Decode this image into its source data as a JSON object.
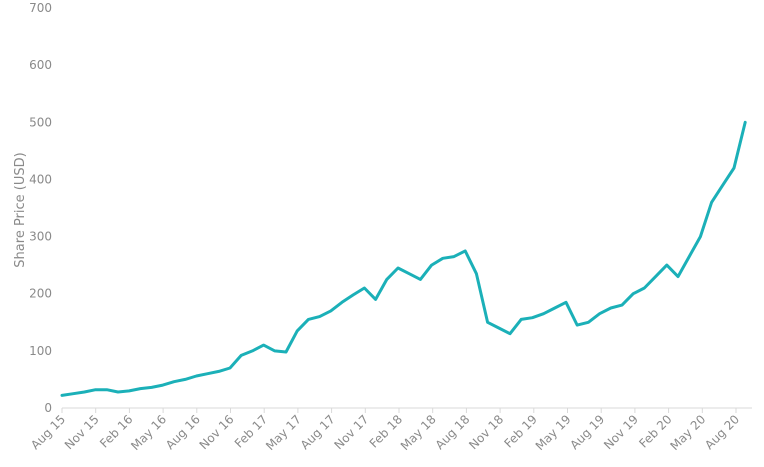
{
  "chart_data": {
    "type": "line",
    "title": "",
    "xlabel": "",
    "ylabel": "Share Price (USD)",
    "ylim": [
      0,
      700
    ],
    "y_ticks": [
      0,
      100,
      200,
      300,
      400,
      500,
      600,
      700
    ],
    "x_tick_labels": [
      "Aug 15",
      "Nov 15",
      "Feb 16",
      "May 16",
      "Aug 16",
      "Nov 16",
      "Feb 17",
      "May 17",
      "Aug 17",
      "Nov 17",
      "Feb 18",
      "May 18",
      "Aug 18",
      "Nov 18",
      "Feb 19",
      "May 19",
      "Aug 19",
      "Nov 19",
      "Feb 20",
      "May 20",
      "Aug 20"
    ],
    "grid": false,
    "legend": "none",
    "series_color": "#1BB0B8",
    "series": [
      {
        "x": [
          "2015-08-01",
          "2015-09-01",
          "2015-10-01",
          "2015-11-01",
          "2015-12-01",
          "2016-01-01",
          "2016-02-01",
          "2016-03-01",
          "2016-04-01",
          "2016-05-01",
          "2016-06-01",
          "2016-07-01",
          "2016-08-01",
          "2016-09-01",
          "2016-10-01",
          "2016-11-01",
          "2016-12-01",
          "2017-01-01",
          "2017-02-01",
          "2017-03-01",
          "2017-04-01",
          "2017-05-01",
          "2017-06-01",
          "2017-07-01",
          "2017-08-01",
          "2017-09-01",
          "2017-10-01",
          "2017-11-01",
          "2017-12-01",
          "2018-01-01",
          "2018-02-01",
          "2018-03-01",
          "2018-04-01",
          "2018-05-01",
          "2018-06-01",
          "2018-07-01",
          "2018-08-01",
          "2018-09-01",
          "2018-10-01",
          "2018-11-01",
          "2018-12-01",
          "2019-01-01",
          "2019-02-01",
          "2019-03-01",
          "2019-04-01",
          "2019-05-01",
          "2019-06-01",
          "2019-07-01",
          "2019-08-01",
          "2019-09-01",
          "2019-10-01",
          "2019-11-01",
          "2019-12-01",
          "2020-01-01",
          "2020-02-01",
          "2020-03-01",
          "2020-04-01",
          "2020-05-01",
          "2020-06-01",
          "2020-07-01",
          "2020-08-01",
          "2020-09-01"
        ],
        "values": [
          22,
          25,
          28,
          32,
          32,
          28,
          30,
          34,
          36,
          40,
          46,
          50,
          56,
          60,
          64,
          70,
          92,
          100,
          110,
          100,
          98,
          135,
          155,
          160,
          170,
          185,
          198,
          210,
          190,
          225,
          245,
          235,
          225,
          250,
          262,
          265,
          275,
          235,
          150,
          140,
          130,
          155,
          158,
          165,
          175,
          185,
          145,
          150,
          165,
          175,
          180,
          200,
          210,
          230,
          250,
          230,
          265,
          300,
          360,
          390,
          420,
          500
        ]
      }
    ]
  }
}
